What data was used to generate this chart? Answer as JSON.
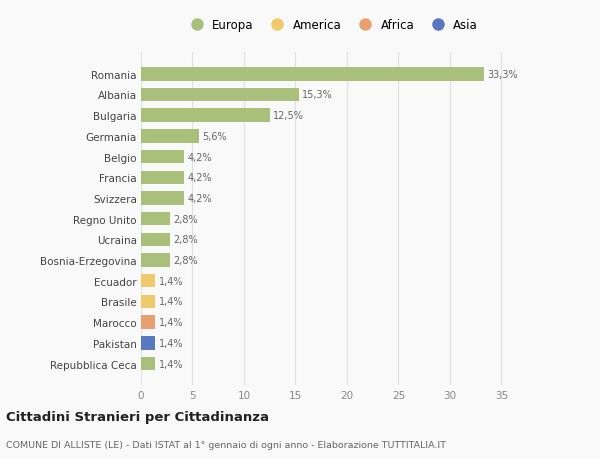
{
  "countries": [
    "Romania",
    "Albania",
    "Bulgaria",
    "Germania",
    "Belgio",
    "Francia",
    "Svizzera",
    "Regno Unito",
    "Ucraina",
    "Bosnia-Erzegovina",
    "Ecuador",
    "Brasile",
    "Marocco",
    "Pakistan",
    "Repubblica Ceca"
  ],
  "values": [
    33.3,
    15.3,
    12.5,
    5.6,
    4.2,
    4.2,
    4.2,
    2.8,
    2.8,
    2.8,
    1.4,
    1.4,
    1.4,
    1.4,
    1.4
  ],
  "labels": [
    "33,3%",
    "15,3%",
    "12,5%",
    "5,6%",
    "4,2%",
    "4,2%",
    "4,2%",
    "2,8%",
    "2,8%",
    "2,8%",
    "1,4%",
    "1,4%",
    "1,4%",
    "1,4%",
    "1,4%"
  ],
  "colors": [
    "#a8c07a",
    "#a8c07a",
    "#a8c07a",
    "#a8c07a",
    "#a8c07a",
    "#a8c07a",
    "#a8c07a",
    "#a8c07a",
    "#a8c07a",
    "#a8c07a",
    "#f0c96a",
    "#f0c96a",
    "#e8a070",
    "#5878c0",
    "#a8c07a"
  ],
  "legend_labels": [
    "Europa",
    "America",
    "Africa",
    "Asia"
  ],
  "legend_colors": [
    "#a8c07a",
    "#f0c96a",
    "#e8a070",
    "#5878c0"
  ],
  "title": "Cittadini Stranieri per Cittadinanza",
  "subtitle": "COMUNE DI ALLISTE (LE) - Dati ISTAT al 1° gennaio di ogni anno - Elaborazione TUTTITALIA.IT",
  "xlim": [
    0,
    37
  ],
  "xticks": [
    0,
    5,
    10,
    15,
    20,
    25,
    30,
    35
  ],
  "background_color": "#f9f9f9",
  "grid_color": "#e0e0e0",
  "bar_height": 0.65
}
